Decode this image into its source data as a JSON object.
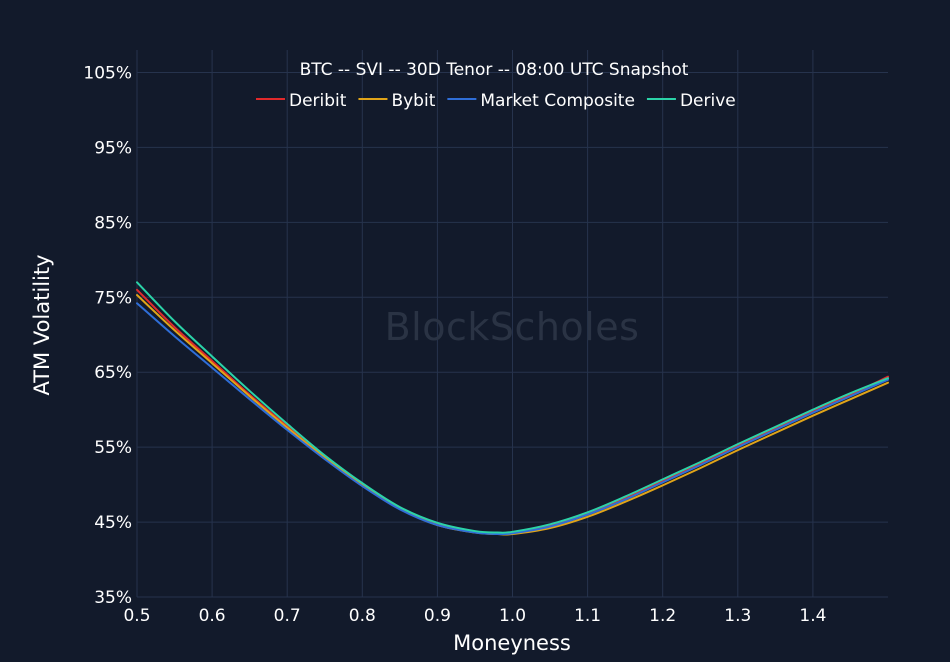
{
  "chart_data": {
    "type": "line",
    "title": "BTC -- SVI -- 30D Tenor -- 08:00 UTC Snapshot",
    "xlabel": "Moneyness",
    "ylabel": "ATM Volatility",
    "watermark": "BlockScholes",
    "xlim": [
      0.5,
      1.5
    ],
    "ylim": [
      35,
      108
    ],
    "x_ticks": [
      0.5,
      0.6,
      0.7,
      0.8,
      0.9,
      1.0,
      1.1,
      1.2,
      1.3,
      1.4
    ],
    "x_tick_labels": [
      "0.5",
      "0.6",
      "0.7",
      "0.8",
      "0.9",
      "1.0",
      "1.1",
      "1.2",
      "1.3",
      "1.4"
    ],
    "y_ticks": [
      35,
      45,
      55,
      65,
      75,
      85,
      95,
      105
    ],
    "y_tick_labels": [
      "35%",
      "45%",
      "55%",
      "65%",
      "75%",
      "85%",
      "95%",
      "105%"
    ],
    "grid": true,
    "legend_position": "top-center",
    "x": [
      0.5,
      0.55,
      0.6,
      0.65,
      0.7,
      0.75,
      0.8,
      0.85,
      0.9,
      0.95,
      0.98,
      1.0,
      1.05,
      1.1,
      1.15,
      1.2,
      1.25,
      1.3,
      1.35,
      1.4,
      1.45,
      1.5
    ],
    "series": [
      {
        "name": "Deribit",
        "color": "#e0292b",
        "values": [
          76.0,
          71.0,
          66.5,
          62.0,
          57.8,
          53.7,
          50.0,
          46.8,
          44.7,
          43.7,
          43.5,
          43.6,
          44.5,
          46.1,
          48.2,
          50.5,
          52.8,
          55.2,
          57.5,
          59.8,
          62.0,
          64.4
        ]
      },
      {
        "name": "Bybit",
        "color": "#e0a419",
        "values": [
          75.3,
          70.6,
          66.2,
          61.8,
          57.6,
          53.6,
          49.9,
          46.8,
          44.6,
          43.6,
          43.4,
          43.4,
          44.2,
          45.7,
          47.7,
          49.9,
          52.2,
          54.6,
          56.9,
          59.2,
          61.4,
          63.6
        ]
      },
      {
        "name": "Market Composite",
        "color": "#2f6ed8",
        "values": [
          74.2,
          69.8,
          65.6,
          61.4,
          57.3,
          53.4,
          49.8,
          46.7,
          44.6,
          43.6,
          43.4,
          43.5,
          44.4,
          46.0,
          48.0,
          50.3,
          52.6,
          55.0,
          57.3,
          59.6,
          61.8,
          64.0
        ]
      },
      {
        "name": "Derive",
        "color": "#2bd3a8",
        "values": [
          77.0,
          71.8,
          67.1,
          62.5,
          58.1,
          53.9,
          50.2,
          47.0,
          44.9,
          43.8,
          43.6,
          43.7,
          44.7,
          46.3,
          48.4,
          50.7,
          53.0,
          55.4,
          57.7,
          60.0,
          62.2,
          64.2
        ]
      }
    ]
  }
}
